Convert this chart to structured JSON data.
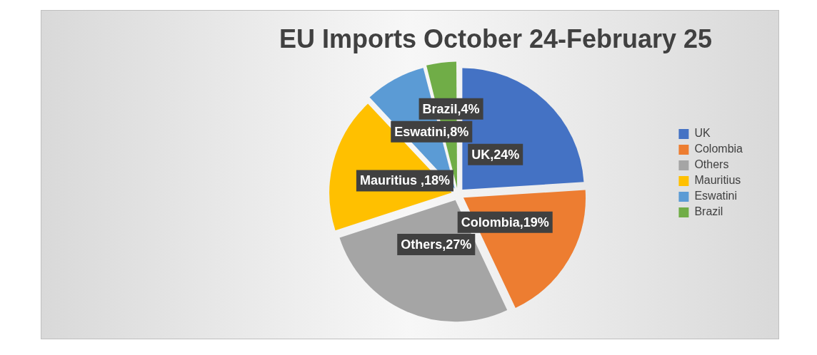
{
  "chart_data": {
    "type": "pie",
    "title": "EU Imports October 24-February 25",
    "categories": [
      "UK",
      "Colombia",
      "Others",
      "Mauritius",
      "Eswatini",
      "Brazil"
    ],
    "values": [
      24,
      19,
      27,
      18,
      8,
      4
    ],
    "colors": [
      "#4472c4",
      "#ed7d31",
      "#a5a5a5",
      "#ffc000",
      "#5b9bd5",
      "#70ad47"
    ],
    "value_labels": [
      "UK,24%",
      "Colombia,19%",
      "Others,27%",
      "Mauritius ,18%",
      "Eswatini,8%",
      "Brazil,4%"
    ],
    "legend": "right"
  }
}
